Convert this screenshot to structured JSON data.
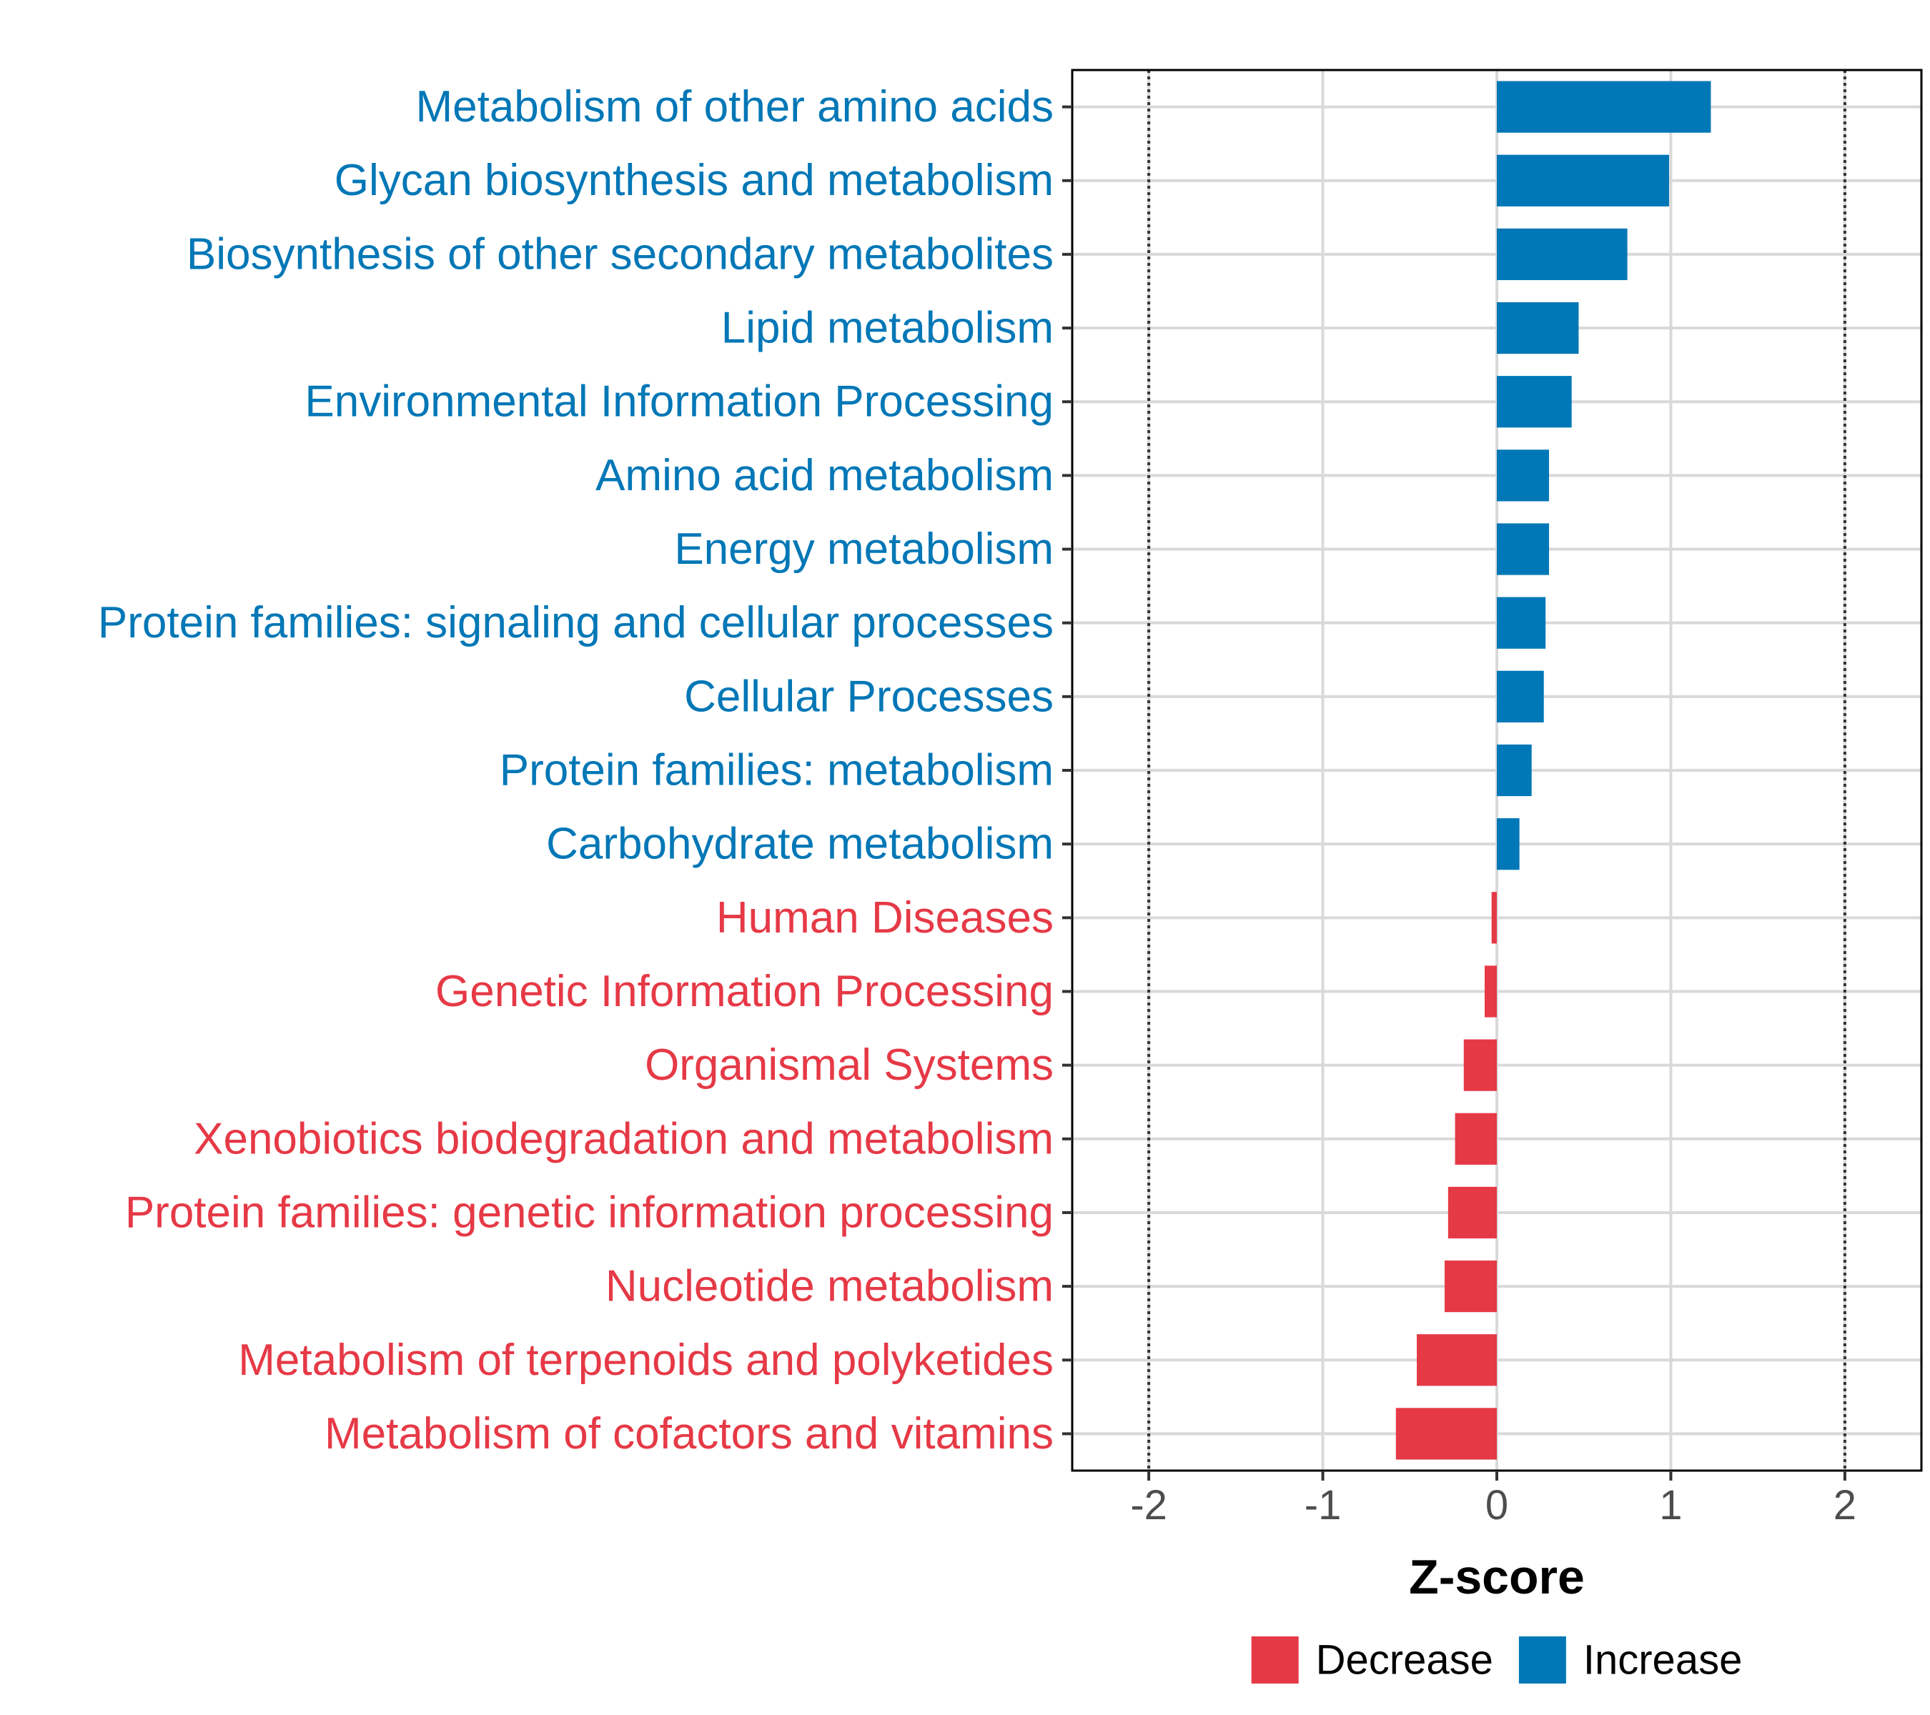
{
  "chart_data": {
    "type": "bar",
    "orientation": "horizontal",
    "categories": [
      "Metabolism of other amino acids",
      "Glycan biosynthesis and metabolism",
      "Biosynthesis of other secondary metabolites",
      "Lipid metabolism",
      "Environmental Information Processing",
      "Amino acid metabolism",
      "Energy metabolism",
      "Protein families: signaling and cellular processes",
      "Cellular Processes",
      "Protein families: metabolism",
      "Carbohydrate metabolism",
      "Human Diseases",
      "Genetic Information Processing",
      "Organismal Systems",
      "Xenobiotics biodegradation and metabolism",
      "Protein families: genetic information processing",
      "Nucleotide metabolism",
      "Metabolism of terpenoids and polyketides",
      "Metabolism of cofactors and vitamins"
    ],
    "values": [
      1.23,
      0.99,
      0.75,
      0.47,
      0.43,
      0.3,
      0.3,
      0.28,
      0.27,
      0.2,
      0.13,
      -0.03,
      -0.07,
      -0.19,
      -0.24,
      -0.28,
      -0.3,
      -0.46,
      -0.58
    ],
    "groups": [
      "Increase",
      "Increase",
      "Increase",
      "Increase",
      "Increase",
      "Increase",
      "Increase",
      "Increase",
      "Increase",
      "Increase",
      "Increase",
      "Decrease",
      "Decrease",
      "Decrease",
      "Decrease",
      "Decrease",
      "Decrease",
      "Decrease",
      "Decrease"
    ],
    "xlabel": "Z-score",
    "ylabel": "",
    "xlim": [
      -2.44,
      2.44
    ],
    "xticks": [
      -2,
      -1,
      0,
      1,
      2
    ],
    "xtick_labels": [
      "-2",
      "-1",
      "0",
      "1",
      "2"
    ],
    "reference_lines": [
      -2,
      2
    ],
    "grid": true,
    "legend": {
      "position": "bottom",
      "entries": [
        {
          "label": "Decrease",
          "color": "#E63946"
        },
        {
          "label": "Increase",
          "color": "#0077B6"
        }
      ]
    }
  }
}
